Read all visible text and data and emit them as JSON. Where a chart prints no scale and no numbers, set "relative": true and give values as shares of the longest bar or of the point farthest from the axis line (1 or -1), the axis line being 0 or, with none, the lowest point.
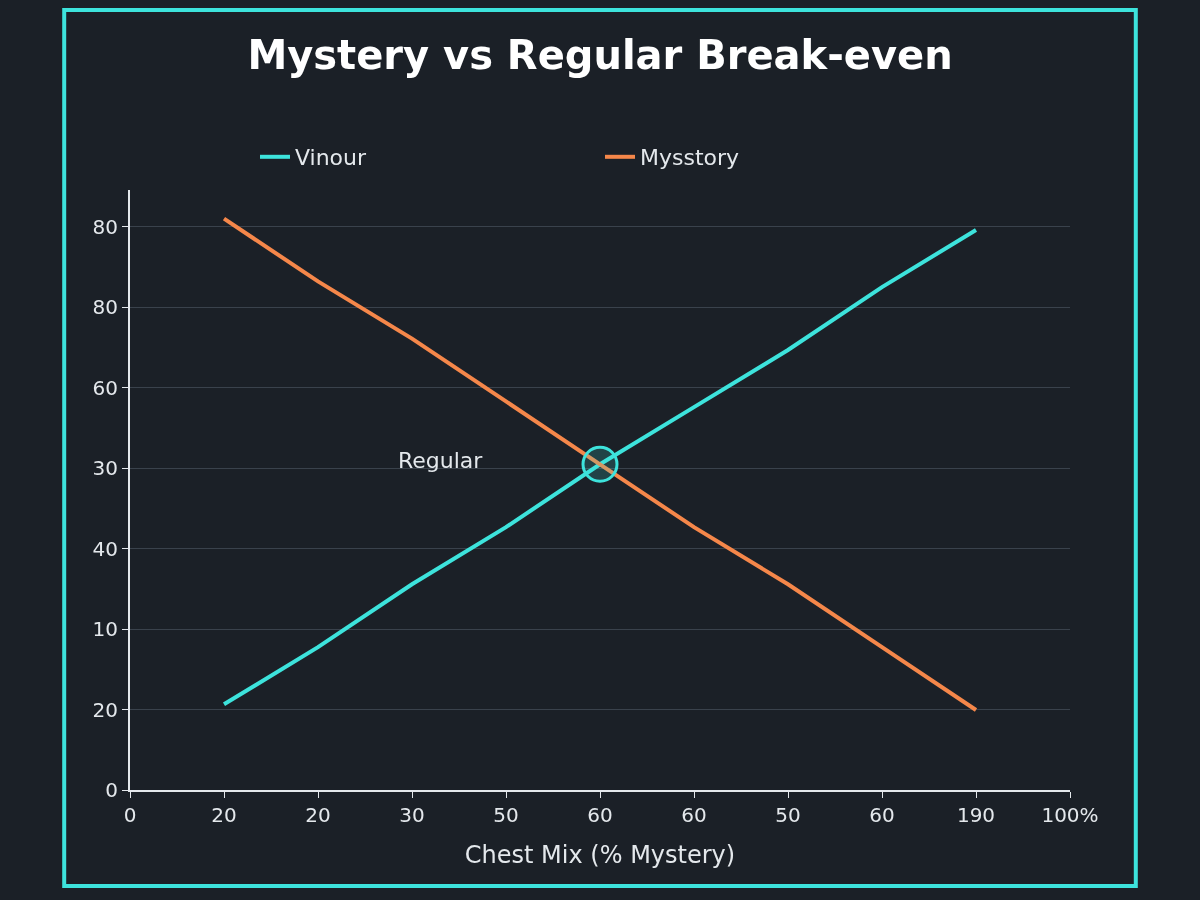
{
  "chart_data": {
    "type": "line",
    "title": "Mystery vs Regular Break-even",
    "xlabel": "Chest Mix (% Mystery)",
    "relative": true,
    "categories": [
      "0",
      "20",
      "20",
      "30",
      "50",
      "60",
      "60",
      "50",
      "60",
      "190",
      "100%"
    ],
    "y_categories": [
      "80",
      "80",
      "60",
      "30",
      "40",
      "10",
      "20",
      "0"
    ],
    "series": [
      {
        "name": "Vinour",
        "color": "#3de3dc",
        "values": [
          null,
          0.15,
          0.25,
          0.36,
          0.46,
          0.57,
          0.67,
          0.77,
          0.88,
          0.98,
          null
        ]
      },
      {
        "name": "Mysstory",
        "color": "#f5874a",
        "values": [
          null,
          1,
          0.89,
          0.79,
          0.68,
          0.57,
          0.46,
          0.36,
          0.25,
          0.14,
          null
        ]
      },
      {
        "type": "scatter",
        "color": "#3de3dc",
        "marker": "circle",
        "values": [
          null,
          null,
          null,
          null,
          null,
          0.57,
          null,
          null,
          null,
          null,
          null
        ]
      }
    ],
    "annotations": [
      "Regular"
    ],
    "grid": "y",
    "legend": "top",
    "marker": "none",
    "line_style": "solid"
  }
}
